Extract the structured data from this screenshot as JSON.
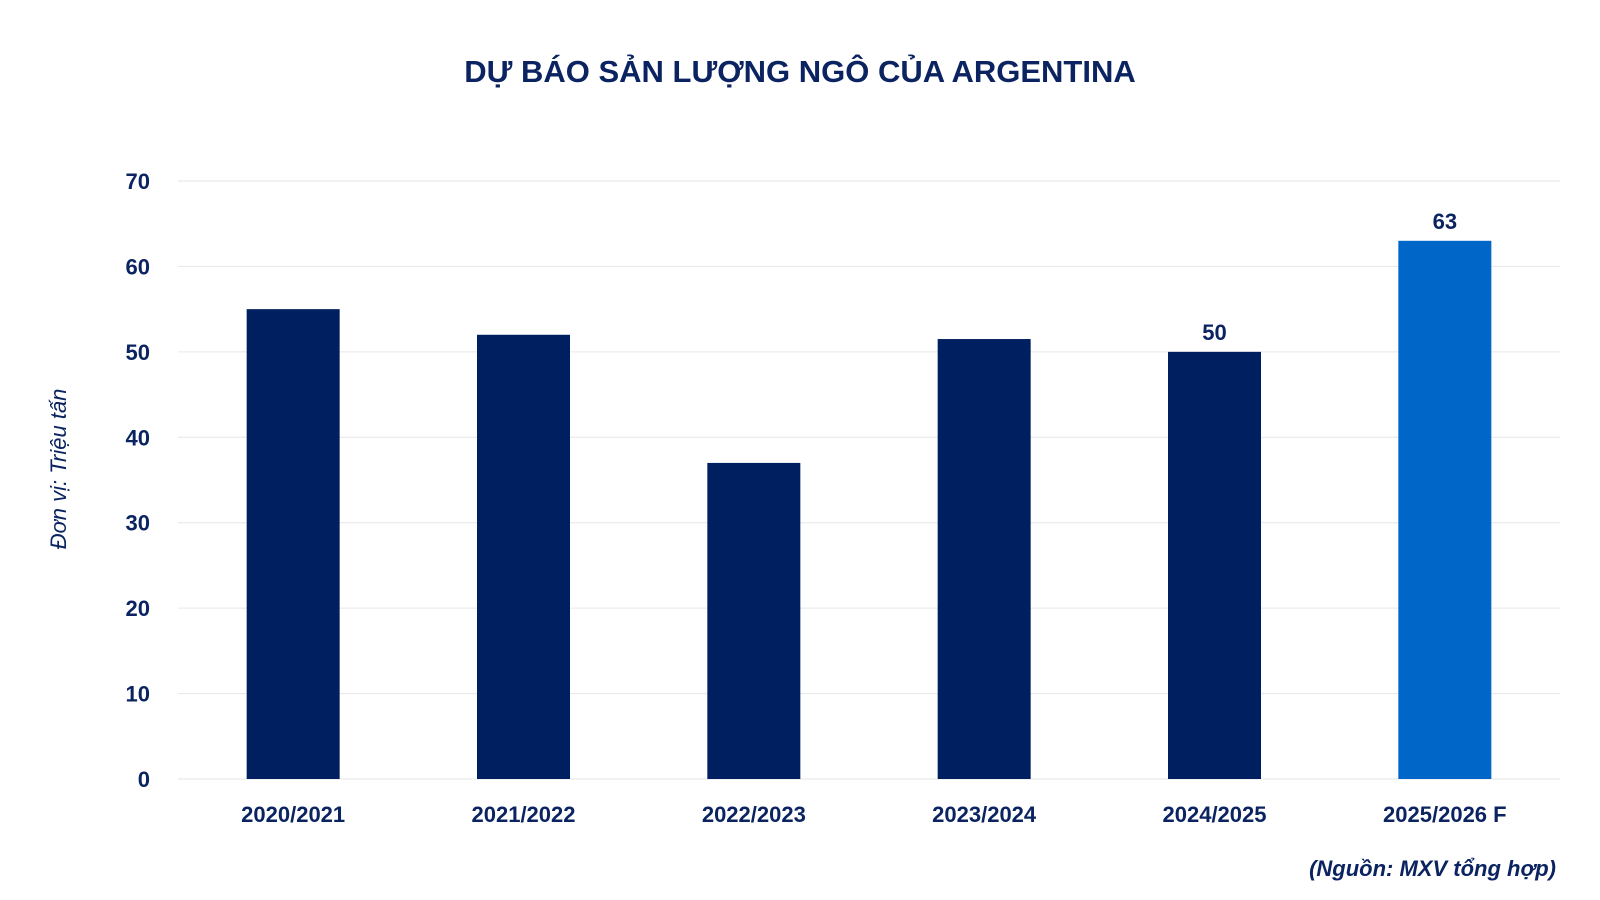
{
  "chart_data": {
    "type": "bar",
    "title": "DỰ BÁO SẢN LƯỢNG NGÔ CỦA ARGENTINA",
    "ylabel": "Đơn vị: Triệu tấn",
    "xlabel": "",
    "categories": [
      "2020/2021",
      "2021/2022",
      "2022/2023",
      "2023/2024",
      "2024/2025",
      "2025/2026 F"
    ],
    "values": [
      55,
      52,
      37,
      51.5,
      50,
      63
    ],
    "data_labels": [
      "",
      "",
      "",
      "",
      "50",
      "63"
    ],
    "bar_colors": [
      "#001f60",
      "#001f60",
      "#001f60",
      "#001f60",
      "#001f60",
      "#0066c8"
    ],
    "ylim": [
      0,
      70
    ],
    "yticks": [
      "0",
      "10",
      "20",
      "30",
      "40",
      "50",
      "60",
      "70"
    ],
    "grid": true,
    "source": "(Nguồn: MXV tổng hợp)"
  }
}
